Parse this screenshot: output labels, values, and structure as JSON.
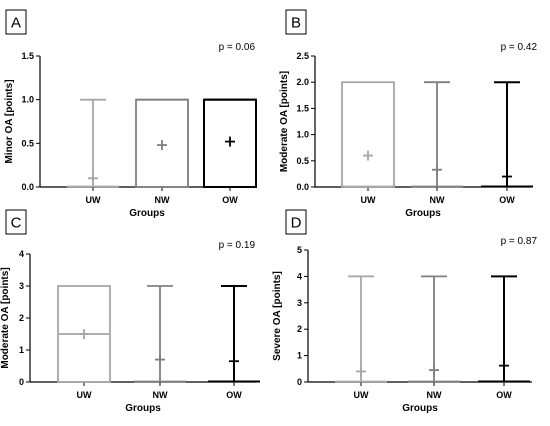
{
  "figure": {
    "background": "#ffffff"
  },
  "chart_data": [
    {
      "type": "box",
      "panel_letter": "A",
      "p_value": "p = 0.06",
      "xlabel": "Groups",
      "ylabel": "Minor OA [points]",
      "ylim": [
        0,
        1.5
      ],
      "yticks": [
        "0.0",
        "0.5",
        "1.0",
        "1.5"
      ],
      "categories": [
        "UW",
        "NW",
        "OW"
      ],
      "colors": [
        "#a6a6a6",
        "#7f7f7f",
        "#000000"
      ],
      "boxes": [
        {
          "min": 0,
          "q1": 0,
          "median": 0,
          "q3": 0,
          "max": 1.0,
          "mean": 0.1
        },
        {
          "min": 1.0,
          "q1": 1.0,
          "median": 1.0,
          "q3": 1.0,
          "max": 1.0,
          "mean": 0.48,
          "box_from_zero": true
        },
        {
          "min": 1.0,
          "q1": 1.0,
          "median": 1.0,
          "q3": 1.0,
          "max": 1.0,
          "mean": 0.52,
          "box_from_zero": true
        }
      ]
    },
    {
      "type": "box",
      "panel_letter": "B",
      "p_value": "p = 0.42",
      "xlabel": "Groups",
      "ylabel": "Moderate OA [points]",
      "ylim": [
        0,
        2.5
      ],
      "yticks": [
        "0.0",
        "0.5",
        "1.0",
        "1.5",
        "2.0",
        "2.5"
      ],
      "categories": [
        "UW",
        "NW",
        "OW"
      ],
      "colors": [
        "#a6a6a6",
        "#7f7f7f",
        "#000000"
      ],
      "boxes": [
        {
          "min": 0,
          "q1": 0,
          "median": 0,
          "q3": 2.0,
          "max": 2.0,
          "mean": 0.6
        },
        {
          "min": 0,
          "q1": 0,
          "median": 0,
          "q3": 0,
          "max": 2.0,
          "mean": 0.33
        },
        {
          "min": 0,
          "q1": 0,
          "median": 0,
          "q3": 0,
          "max": 2.0,
          "mean": 0.2
        }
      ]
    },
    {
      "type": "box",
      "panel_letter": "C",
      "p_value": "p = 0.19",
      "xlabel": "Groups",
      "ylabel": "Moderate OA [points]",
      "ylim": [
        0,
        4
      ],
      "yticks": [
        "0",
        "1",
        "2",
        "3",
        "4"
      ],
      "categories": [
        "UW",
        "NW",
        "OW"
      ],
      "colors": [
        "#a6a6a6",
        "#7f7f7f",
        "#000000"
      ],
      "boxes": [
        {
          "min": 0,
          "q1": 0,
          "median": 1.5,
          "q3": 3.0,
          "max": 3.0,
          "mean": 1.5
        },
        {
          "min": 0,
          "q1": 0,
          "median": 0,
          "q3": 0,
          "max": 3.0,
          "mean": 0.7
        },
        {
          "min": 0,
          "q1": 0,
          "median": 0,
          "q3": 0,
          "max": 3.0,
          "mean": 0.65
        }
      ]
    },
    {
      "type": "box",
      "panel_letter": "D",
      "p_value": "p = 0.87",
      "xlabel": "Groups",
      "ylabel": "Severe OA [points]",
      "ylim": [
        0,
        5
      ],
      "yticks": [
        "0",
        "1",
        "2",
        "3",
        "4",
        "5"
      ],
      "categories": [
        "UW",
        "NW",
        "OW"
      ],
      "colors": [
        "#a6a6a6",
        "#7f7f7f",
        "#000000"
      ],
      "boxes": [
        {
          "min": 0,
          "q1": 0,
          "median": 0,
          "q3": 0,
          "max": 4.0,
          "mean": 0.4
        },
        {
          "min": 0,
          "q1": 0,
          "median": 0,
          "q3": 0,
          "max": 4.0,
          "mean": 0.45
        },
        {
          "min": 0,
          "q1": 0,
          "median": 0,
          "q3": 0,
          "max": 4.0,
          "mean": 0.62
        }
      ]
    }
  ]
}
